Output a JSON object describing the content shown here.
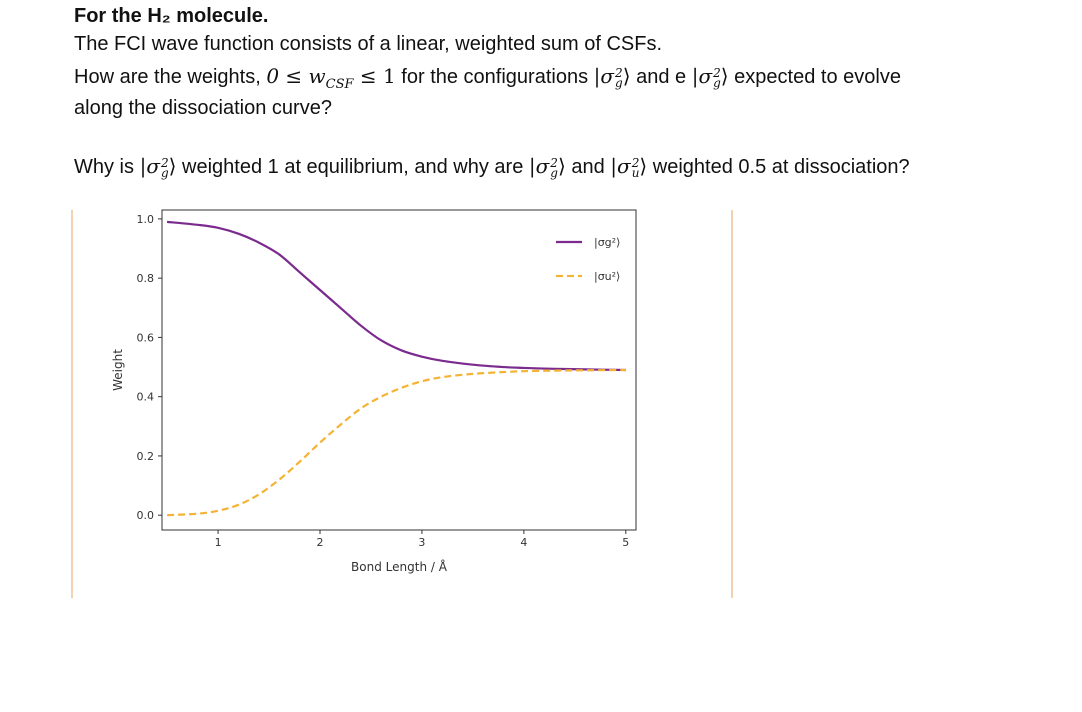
{
  "question": {
    "heading": "For the H₂ molecule.",
    "line1": "The FCI wave function consists of a linear, weighted sum of CSFs.",
    "line2_a": "How are the weights, ",
    "line2_math": "0 ≤ w",
    "line2_sub": "CSF",
    "line2_math2": " ≤ 1",
    "line2_b": " for the configurations ",
    "line2_c": " and e ",
    "line2_d": " expected to evolve",
    "line3": "along the dissociation curve?",
    "line4_a": "Why is ",
    "line4_b": " weighted 1 at equilibrium, and why are ",
    "line4_c": " and ",
    "line4_d": " weighted 0.5 at dissociation?",
    "ket_sigma": "σ",
    "ket_g": "g",
    "ket_u": "u",
    "ket_2": "2"
  },
  "chart_data": {
    "type": "line",
    "xlabel": "Bond Length / Å",
    "ylabel": "Weight",
    "xlim": [
      0.45,
      5.1
    ],
    "ylim": [
      -0.05,
      1.03
    ],
    "xticks": [
      1,
      2,
      3,
      4,
      5
    ],
    "yticks": [
      0.0,
      0.2,
      0.4,
      0.6,
      0.8,
      1.0
    ],
    "ytick_labels": [
      "0.0",
      "0.2",
      "0.4",
      "0.6",
      "0.8",
      "1.0"
    ],
    "grid": false,
    "legend_position": "top-right",
    "series": [
      {
        "name": "|σg²⟩",
        "color": "#7b2a8e",
        "style": "solid",
        "x": [
          0.5,
          0.8,
          1.0,
          1.2,
          1.4,
          1.6,
          1.8,
          2.0,
          2.2,
          2.4,
          2.6,
          2.8,
          3.0,
          3.2,
          3.5,
          3.8,
          4.0,
          4.3,
          4.6,
          5.0
        ],
        "y": [
          0.99,
          0.98,
          0.97,
          0.95,
          0.92,
          0.88,
          0.82,
          0.76,
          0.7,
          0.64,
          0.59,
          0.556,
          0.535,
          0.521,
          0.508,
          0.5,
          0.497,
          0.494,
          0.492,
          0.49
        ]
      },
      {
        "name": "|σu²⟩",
        "color": "#f5b335",
        "style": "dashed",
        "x": [
          0.5,
          0.8,
          1.0,
          1.2,
          1.4,
          1.6,
          1.8,
          2.0,
          2.2,
          2.4,
          2.6,
          2.8,
          3.0,
          3.2,
          3.5,
          3.8,
          4.0,
          4.3,
          4.6,
          5.0
        ],
        "y": [
          0.0,
          0.005,
          0.015,
          0.035,
          0.07,
          0.12,
          0.18,
          0.245,
          0.305,
          0.36,
          0.4,
          0.43,
          0.452,
          0.466,
          0.477,
          0.483,
          0.486,
          0.488,
          0.489,
          0.49
        ]
      }
    ]
  }
}
